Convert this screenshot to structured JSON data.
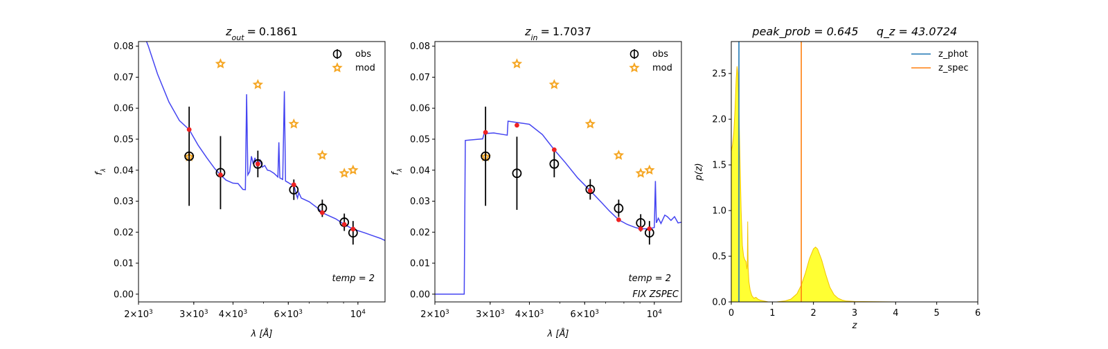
{
  "chart_data": [
    {
      "type": "scatter",
      "panel": "sed_out",
      "title_var": "z",
      "title_sub": "out",
      "title_value": "0.1861",
      "xlabel_main": "λ [",
      "xlabel_unit": "Å",
      "xlabel_end": "]",
      "ylabel_main": "f",
      "ylabel_sub": "λ",
      "xscale": "log",
      "xlim": [
        2000,
        12200
      ],
      "ylim": [
        -0.0025,
        0.0815
      ],
      "xticks": [
        {
          "v": 2000,
          "m": "2",
          "e": "3"
        },
        {
          "v": 3000,
          "m": "3",
          "e": "3"
        },
        {
          "v": 4000,
          "m": "4",
          "e": "3"
        },
        {
          "v": 6000,
          "m": "6",
          "e": "3"
        },
        {
          "v": 10000,
          "m": "",
          "e": "4"
        }
      ],
      "yticks": [
        {
          "v": 0.0,
          "l": "0.00"
        },
        {
          "v": 0.01,
          "l": "0.01"
        },
        {
          "v": 0.02,
          "l": "0.02"
        },
        {
          "v": 0.03,
          "l": "0.03"
        },
        {
          "v": 0.04,
          "l": "0.04"
        },
        {
          "v": 0.05,
          "l": "0.05"
        },
        {
          "v": 0.06,
          "l": "0.06"
        },
        {
          "v": 0.07,
          "l": "0.07"
        },
        {
          "v": 0.08,
          "l": "0.08"
        }
      ],
      "legend": [
        {
          "label": "obs"
        },
        {
          "label": "mod"
        }
      ],
      "annotations": [
        "temp = 2"
      ],
      "colors": {
        "line": "#3a3af0",
        "obs": "#000000",
        "mod": "#f5a623",
        "model_pt": "#ee2222"
      },
      "obs": [
        {
          "x": 2900,
          "y": 0.0445,
          "err": 0.016
        },
        {
          "x": 3650,
          "y": 0.0392,
          "err": 0.0118
        },
        {
          "x": 4800,
          "y": 0.042,
          "err": 0.0043
        },
        {
          "x": 6250,
          "y": 0.0337,
          "err": 0.0033
        },
        {
          "x": 7700,
          "y": 0.0277,
          "err": 0.0028
        },
        {
          "x": 9050,
          "y": 0.0232,
          "err": 0.0028
        },
        {
          "x": 9650,
          "y": 0.0198,
          "err": 0.0038
        }
      ],
      "mod": [
        {
          "x": 2900,
          "y": 0.0443
        },
        {
          "x": 3650,
          "y": 0.0743
        },
        {
          "x": 4800,
          "y": 0.0676
        },
        {
          "x": 6250,
          "y": 0.0549
        },
        {
          "x": 7700,
          "y": 0.0448
        },
        {
          "x": 9050,
          "y": 0.039
        },
        {
          "x": 9650,
          "y": 0.04
        }
      ],
      "model_pts": [
        {
          "x": 2900,
          "y": 0.0531
        },
        {
          "x": 3650,
          "y": 0.0385
        },
        {
          "x": 4800,
          "y": 0.042
        },
        {
          "x": 6250,
          "y": 0.0353
        },
        {
          "x": 7700,
          "y": 0.0263
        },
        {
          "x": 9050,
          "y": 0.0225
        },
        {
          "x": 9650,
          "y": 0.021
        }
      ],
      "line": [
        [
          2000,
          0.088
        ],
        [
          2150,
          0.08
        ],
        [
          2300,
          0.071
        ],
        [
          2500,
          0.062
        ],
        [
          2700,
          0.056
        ],
        [
          2900,
          0.0531
        ],
        [
          3100,
          0.048
        ],
        [
          3300,
          0.044
        ],
        [
          3500,
          0.0405
        ],
        [
          3650,
          0.0385
        ],
        [
          3800,
          0.0368
        ],
        [
          4000,
          0.0358
        ],
        [
          4150,
          0.0357
        ],
        [
          4300,
          0.0338
        ],
        [
          4380,
          0.0337
        ],
        [
          4420,
          0.0645
        ],
        [
          4460,
          0.0385
        ],
        [
          4520,
          0.0395
        ],
        [
          4580,
          0.0445
        ],
        [
          4640,
          0.042
        ],
        [
          4700,
          0.044
        ],
        [
          4760,
          0.0415
        ],
        [
          4800,
          0.042
        ],
        [
          4880,
          0.0433
        ],
        [
          4960,
          0.041
        ],
        [
          5050,
          0.0415
        ],
        [
          5150,
          0.04
        ],
        [
          5250,
          0.0398
        ],
        [
          5400,
          0.039
        ],
        [
          5560,
          0.0378
        ],
        [
          5600,
          0.049
        ],
        [
          5640,
          0.0375
        ],
        [
          5760,
          0.037
        ],
        [
          5830,
          0.0655
        ],
        [
          5880,
          0.0365
        ],
        [
          6000,
          0.036
        ],
        [
          6100,
          0.0355
        ],
        [
          6250,
          0.0353
        ],
        [
          6350,
          0.0325
        ],
        [
          6420,
          0.031
        ],
        [
          6480,
          0.0328
        ],
        [
          6600,
          0.031
        ],
        [
          7000,
          0.0298
        ],
        [
          7500,
          0.0275
        ],
        [
          7700,
          0.0263
        ],
        [
          8000,
          0.0255
        ],
        [
          8500,
          0.0243
        ],
        [
          9050,
          0.0225
        ],
        [
          9650,
          0.021
        ],
        [
          10500,
          0.0198
        ],
        [
          11200,
          0.0188
        ],
        [
          11800,
          0.018
        ],
        [
          12200,
          0.0173
        ]
      ]
    },
    {
      "type": "scatter",
      "panel": "sed_in",
      "title_var": "z",
      "title_sub": "in",
      "title_value": "1.7037",
      "xlabel_main": "λ [",
      "xlabel_unit": "Å",
      "xlabel_end": "]",
      "ylabel_main": "f",
      "ylabel_sub": "λ",
      "xscale": "log",
      "xlim": [
        2000,
        12200
      ],
      "ylim": [
        -0.0025,
        0.0815
      ],
      "xticks": [
        {
          "v": 2000,
          "m": "2",
          "e": "3"
        },
        {
          "v": 3000,
          "m": "3",
          "e": "3"
        },
        {
          "v": 4000,
          "m": "4",
          "e": "3"
        },
        {
          "v": 6000,
          "m": "6",
          "e": "3"
        },
        {
          "v": 10000,
          "m": "",
          "e": "4"
        }
      ],
      "yticks": [
        {
          "v": 0.0,
          "l": "0.00"
        },
        {
          "v": 0.01,
          "l": "0.01"
        },
        {
          "v": 0.02,
          "l": "0.02"
        },
        {
          "v": 0.03,
          "l": "0.03"
        },
        {
          "v": 0.04,
          "l": "0.04"
        },
        {
          "v": 0.05,
          "l": "0.05"
        },
        {
          "v": 0.06,
          "l": "0.06"
        },
        {
          "v": 0.07,
          "l": "0.07"
        },
        {
          "v": 0.08,
          "l": "0.08"
        }
      ],
      "legend": [
        {
          "label": "obs"
        },
        {
          "label": "mod"
        }
      ],
      "annotations": [
        "temp = 2",
        "FIX ZSPEC"
      ],
      "colors": {
        "line": "#3a3af0",
        "obs": "#000000",
        "mod": "#f5a623",
        "model_pt": "#ee2222"
      },
      "obs": [
        {
          "x": 2900,
          "y": 0.0445,
          "err": 0.016
        },
        {
          "x": 3650,
          "y": 0.039,
          "err": 0.0118
        },
        {
          "x": 4800,
          "y": 0.042,
          "err": 0.0043
        },
        {
          "x": 6250,
          "y": 0.0338,
          "err": 0.0033
        },
        {
          "x": 7700,
          "y": 0.0277,
          "err": 0.0028
        },
        {
          "x": 9050,
          "y": 0.023,
          "err": 0.0028
        },
        {
          "x": 9650,
          "y": 0.0198,
          "err": 0.0038
        }
      ],
      "mod": [
        {
          "x": 2900,
          "y": 0.0443
        },
        {
          "x": 3650,
          "y": 0.0743
        },
        {
          "x": 4800,
          "y": 0.0676
        },
        {
          "x": 6250,
          "y": 0.0549
        },
        {
          "x": 7700,
          "y": 0.0448
        },
        {
          "x": 9050,
          "y": 0.039
        },
        {
          "x": 9650,
          "y": 0.04
        }
      ],
      "model_pts": [
        {
          "x": 2900,
          "y": 0.0522
        },
        {
          "x": 3650,
          "y": 0.0545
        },
        {
          "x": 4800,
          "y": 0.0466
        },
        {
          "x": 6250,
          "y": 0.0334
        },
        {
          "x": 7700,
          "y": 0.024
        },
        {
          "x": 9050,
          "y": 0.0211
        },
        {
          "x": 9650,
          "y": 0.0211
        }
      ],
      "line": [
        [
          2000,
          0.0
        ],
        [
          2480,
          0.0
        ],
        [
          2500,
          0.0496
        ],
        [
          2840,
          0.0501
        ],
        [
          2870,
          0.0518
        ],
        [
          3080,
          0.052
        ],
        [
          3400,
          0.0513
        ],
        [
          3420,
          0.0558
        ],
        [
          3700,
          0.0553
        ],
        [
          4000,
          0.0548
        ],
        [
          4400,
          0.0515
        ],
        [
          4800,
          0.0466
        ],
        [
          5200,
          0.0425
        ],
        [
          5700,
          0.0375
        ],
        [
          6250,
          0.0334
        ],
        [
          6800,
          0.0295
        ],
        [
          7200,
          0.0268
        ],
        [
          7700,
          0.024
        ],
        [
          8200,
          0.0225
        ],
        [
          8700,
          0.0215
        ],
        [
          9050,
          0.0211
        ],
        [
          9650,
          0.0211
        ],
        [
          10000,
          0.0215
        ],
        [
          10080,
          0.0365
        ],
        [
          10150,
          0.023
        ],
        [
          10300,
          0.0245
        ],
        [
          10500,
          0.0228
        ],
        [
          10800,
          0.0255
        ],
        [
          11000,
          0.025
        ],
        [
          11300,
          0.0238
        ],
        [
          11600,
          0.025
        ],
        [
          11900,
          0.023
        ],
        [
          12200,
          0.0232
        ]
      ]
    },
    {
      "type": "area",
      "panel": "pz",
      "title_left": "peak_prob = 0.645",
      "title_right": "q_z = 43.0724",
      "xlabel": "z",
      "ylabel": "p(z)",
      "xlim": [
        0,
        6
      ],
      "ylim": [
        0,
        2.85
      ],
      "xticks": [
        0,
        1,
        2,
        3,
        4,
        5,
        6
      ],
      "yticks": [
        {
          "v": 0.0,
          "l": "0.0"
        },
        {
          "v": 0.5,
          "l": "0.5"
        },
        {
          "v": 1.0,
          "l": "1.0"
        },
        {
          "v": 1.5,
          "l": "1.5"
        },
        {
          "v": 2.0,
          "l": "2.0"
        },
        {
          "v": 2.5,
          "l": "2.5"
        }
      ],
      "legend": [
        {
          "label": "z_phot",
          "color": "#1f77b4"
        },
        {
          "label": "z_spec",
          "color": "#ff7f0e"
        }
      ],
      "z_phot": 0.1861,
      "z_spec": 1.7037,
      "colors": {
        "fill": "#ffff33",
        "edge": "#f2c200"
      },
      "pdf": [
        [
          0.0,
          1.65
        ],
        [
          0.03,
          1.72
        ],
        [
          0.06,
          1.85
        ],
        [
          0.09,
          2.1
        ],
        [
          0.12,
          2.45
        ],
        [
          0.14,
          2.58
        ],
        [
          0.16,
          2.5
        ],
        [
          0.18,
          2.2
        ],
        [
          0.21,
          1.6
        ],
        [
          0.24,
          1.0
        ],
        [
          0.27,
          0.62
        ],
        [
          0.3,
          0.5
        ],
        [
          0.33,
          0.46
        ],
        [
          0.36,
          0.44
        ],
        [
          0.38,
          0.36
        ],
        [
          0.39,
          0.4
        ],
        [
          0.4,
          0.88
        ],
        [
          0.41,
          0.38
        ],
        [
          0.43,
          0.22
        ],
        [
          0.46,
          0.13
        ],
        [
          0.5,
          0.07
        ],
        [
          0.55,
          0.04
        ],
        [
          0.6,
          0.05
        ],
        [
          0.65,
          0.03
        ],
        [
          0.7,
          0.02
        ],
        [
          0.8,
          0.01
        ],
        [
          0.9,
          0.0
        ],
        [
          1.1,
          0.0
        ],
        [
          1.3,
          0.01
        ],
        [
          1.45,
          0.03
        ],
        [
          1.6,
          0.09
        ],
        [
          1.7,
          0.18
        ],
        [
          1.8,
          0.31
        ],
        [
          1.9,
          0.47
        ],
        [
          2.0,
          0.58
        ],
        [
          2.05,
          0.6
        ],
        [
          2.1,
          0.58
        ],
        [
          2.2,
          0.46
        ],
        [
          2.3,
          0.3
        ],
        [
          2.4,
          0.16
        ],
        [
          2.5,
          0.08
        ],
        [
          2.6,
          0.04
        ],
        [
          2.7,
          0.02
        ],
        [
          2.8,
          0.01
        ],
        [
          3.0,
          0.005
        ],
        [
          4.0,
          0.0
        ],
        [
          5.0,
          0.0
        ]
      ]
    }
  ]
}
